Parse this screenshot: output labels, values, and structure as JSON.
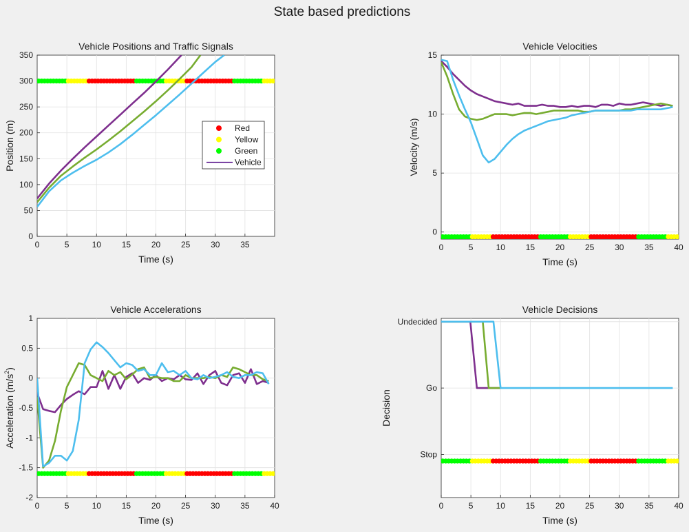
{
  "figure": {
    "title": "State based predictions"
  },
  "colors": {
    "red": "#ff0000",
    "yellow": "#ffff00",
    "green": "#00ff00",
    "purple": "#7e2f8e",
    "olive": "#77ac30",
    "sky": "#4dbeee",
    "legend_line": "#4b0082"
  },
  "signal_pattern": [
    {
      "state": "green",
      "from": 0,
      "to": 5
    },
    {
      "state": "yellow",
      "from": 5,
      "to": 8.5
    },
    {
      "state": "red",
      "from": 8.5,
      "to": 16.5
    },
    {
      "state": "green",
      "from": 16.5,
      "to": 21.5
    },
    {
      "state": "yellow",
      "from": 21.5,
      "to": 25
    },
    {
      "state": "red",
      "from": 25,
      "to": 33
    },
    {
      "state": "green",
      "from": 33,
      "to": 38
    },
    {
      "state": "yellow",
      "from": 38,
      "to": 40
    }
  ],
  "chart_data": [
    {
      "id": "positions",
      "type": "line",
      "title": "Vehicle Positions and Traffic Signals",
      "xlabel": "Time (s)",
      "ylabel": "Position (m)",
      "xlim": [
        0,
        40
      ],
      "ylim": [
        0,
        350
      ],
      "xticks": [
        0,
        5,
        10,
        15,
        20,
        25,
        30,
        35
      ],
      "yticks": [
        0,
        50,
        100,
        150,
        200,
        250,
        300,
        350
      ],
      "grid": true,
      "signal_y": 300,
      "legend": {
        "placement": "center-right",
        "entries": [
          {
            "label": "Red",
            "marker": "red"
          },
          {
            "label": "Yellow",
            "marker": "yellow"
          },
          {
            "label": "Green",
            "marker": "green"
          },
          {
            "label": "Vehicle",
            "line": "legend_line"
          }
        ]
      },
      "series": [
        {
          "color": "purple",
          "x": [
            0,
            2,
            4,
            6,
            8,
            10,
            12,
            14,
            16,
            18,
            20,
            22,
            24.3
          ],
          "y": [
            73,
            102,
            127,
            150,
            172,
            193,
            214,
            235,
            256,
            277,
            299,
            322,
            350
          ]
        },
        {
          "color": "olive",
          "x": [
            0,
            2,
            4,
            6,
            8,
            10,
            12,
            14,
            16,
            18,
            20,
            22,
            24,
            26,
            27.5
          ],
          "y": [
            66,
            94,
            117,
            135,
            152,
            168,
            185,
            203,
            222,
            241,
            261,
            282,
            304,
            327,
            350
          ]
        },
        {
          "color": "sky",
          "x": [
            0,
            2,
            4,
            6,
            8,
            10,
            12,
            14,
            16,
            18,
            20,
            22,
            24,
            26,
            28,
            30,
            31.5
          ],
          "y": [
            57,
            87,
            108,
            123,
            136,
            148,
            162,
            178,
            196,
            215,
            234,
            254,
            274,
            295,
            316,
            337,
            350
          ]
        }
      ]
    },
    {
      "id": "velocities",
      "type": "line",
      "title": "Vehicle Velocities",
      "xlabel": "Time (s)",
      "ylabel": "Velocity (m/s)",
      "xlim": [
        0,
        40
      ],
      "ylim": [
        -0.6,
        15
      ],
      "xticks": [
        0,
        5,
        10,
        15,
        20,
        25,
        30,
        35,
        40
      ],
      "yticks": [
        0,
        5,
        10,
        15
      ],
      "grid": true,
      "signal_y": -0.4,
      "series": [
        {
          "color": "purple",
          "x": [
            0,
            1,
            2,
            3,
            4,
            5,
            6,
            7,
            8,
            9,
            10,
            11,
            12,
            13,
            14,
            15,
            16,
            17,
            18,
            19,
            20,
            21,
            22,
            23,
            24,
            25,
            26,
            27,
            28,
            29,
            30,
            31,
            32,
            33,
            34,
            35,
            36,
            37,
            38,
            39
          ],
          "y": [
            14.5,
            14.0,
            13.4,
            12.9,
            12.4,
            12.0,
            11.7,
            11.5,
            11.3,
            11.1,
            11.0,
            10.9,
            10.8,
            10.9,
            10.7,
            10.7,
            10.7,
            10.8,
            10.7,
            10.7,
            10.6,
            10.6,
            10.7,
            10.6,
            10.7,
            10.7,
            10.6,
            10.8,
            10.8,
            10.7,
            10.9,
            10.8,
            10.8,
            10.9,
            11.0,
            10.9,
            10.8,
            10.7,
            10.8,
            10.7
          ]
        },
        {
          "color": "olive",
          "x": [
            0,
            1,
            2,
            3,
            4,
            5,
            6,
            7,
            8,
            9,
            10,
            11,
            12,
            13,
            14,
            15,
            16,
            17,
            18,
            19,
            20,
            21,
            22,
            23,
            24,
            25,
            26,
            27,
            28,
            29,
            30,
            31,
            32,
            33,
            34,
            35,
            36,
            37,
            38,
            39
          ],
          "y": [
            14.4,
            13.2,
            11.7,
            10.4,
            9.8,
            9.6,
            9.5,
            9.6,
            9.8,
            10.0,
            10.0,
            10.0,
            9.9,
            10.0,
            10.1,
            10.1,
            10.0,
            10.1,
            10.2,
            10.3,
            10.3,
            10.3,
            10.3,
            10.3,
            10.2,
            10.2,
            10.3,
            10.3,
            10.3,
            10.3,
            10.3,
            10.4,
            10.4,
            10.5,
            10.6,
            10.7,
            10.8,
            10.9,
            10.8,
            10.7
          ]
        },
        {
          "color": "sky",
          "x": [
            0,
            1,
            2,
            3,
            4,
            5,
            6,
            7,
            8,
            9,
            10,
            11,
            12,
            13,
            14,
            15,
            16,
            17,
            18,
            19,
            20,
            21,
            22,
            23,
            24,
            25,
            26,
            27,
            28,
            29,
            30,
            31,
            32,
            33,
            34,
            35,
            36,
            37,
            38,
            39
          ],
          "y": [
            14.6,
            14.5,
            12.9,
            11.6,
            10.4,
            9.3,
            7.9,
            6.5,
            5.9,
            6.2,
            6.8,
            7.4,
            7.9,
            8.3,
            8.6,
            8.8,
            9.0,
            9.2,
            9.4,
            9.5,
            9.6,
            9.7,
            9.9,
            10.0,
            10.1,
            10.2,
            10.3,
            10.3,
            10.3,
            10.3,
            10.3,
            10.3,
            10.3,
            10.4,
            10.4,
            10.4,
            10.4,
            10.4,
            10.5,
            10.6
          ]
        }
      ]
    },
    {
      "id": "accelerations",
      "type": "line",
      "title": "Vehicle Accelerations",
      "xlabel": "Time (s)",
      "ylabel": "Acceleration (m/s",
      "ylabel_sup": "2",
      "ylabel_end": ")",
      "xlim": [
        0,
        40
      ],
      "ylim": [
        -2,
        1
      ],
      "xticks": [
        0,
        5,
        10,
        15,
        20,
        25,
        30,
        35,
        40
      ],
      "yticks": [
        -2,
        -1.5,
        -1,
        -0.5,
        0,
        0.5,
        1
      ],
      "grid": true,
      "signal_y": -1.6,
      "series": [
        {
          "color": "purple",
          "x": [
            0,
            1,
            2,
            3,
            4,
            5,
            6,
            7,
            8,
            9,
            10,
            11,
            12,
            13,
            14,
            15,
            16,
            17,
            18,
            19,
            20,
            21,
            22,
            23,
            24,
            25,
            26,
            27,
            28,
            29,
            30,
            31,
            32,
            33,
            34,
            35,
            36,
            37,
            38,
            39
          ],
          "y": [
            -0.25,
            -0.52,
            -0.55,
            -0.57,
            -0.45,
            -0.35,
            -0.28,
            -0.22,
            -0.27,
            -0.15,
            -0.15,
            0.12,
            -0.18,
            0.05,
            -0.18,
            0.02,
            0.08,
            -0.08,
            0.0,
            -0.03,
            0.05,
            -0.05,
            0.0,
            -0.02,
            0.05,
            -0.02,
            -0.03,
            0.08,
            -0.1,
            0.05,
            0.12,
            -0.08,
            -0.12,
            0.05,
            0.08,
            -0.08,
            0.15,
            -0.1,
            -0.05,
            -0.08
          ]
        },
        {
          "color": "olive",
          "x": [
            0,
            1,
            2,
            3,
            4,
            5,
            6,
            7,
            8,
            9,
            10,
            11,
            12,
            13,
            14,
            15,
            16,
            17,
            18,
            19,
            20,
            21,
            22,
            23,
            24,
            25,
            26,
            27,
            28,
            29,
            30,
            31,
            32,
            33,
            34,
            35,
            36,
            37,
            38,
            39
          ],
          "y": [
            -0.32,
            -1.5,
            -1.38,
            -1.05,
            -0.55,
            -0.15,
            0.05,
            0.25,
            0.22,
            0.05,
            0.0,
            -0.05,
            0.12,
            0.05,
            0.1,
            -0.02,
            0.06,
            0.15,
            0.18,
            0.0,
            0.02,
            0.0,
            0.0,
            -0.05,
            -0.05,
            0.05,
            0.0,
            0.0,
            0.0,
            0.02,
            0.0,
            0.05,
            0.02,
            0.18,
            0.15,
            0.1,
            0.05,
            0.05,
            -0.02,
            -0.05
          ]
        },
        {
          "color": "sky",
          "x": [
            0,
            1,
            2,
            3,
            4,
            5,
            6,
            7,
            8,
            9,
            10,
            11,
            12,
            13,
            14,
            15,
            16,
            17,
            18,
            19,
            20,
            21,
            22,
            23,
            24,
            25,
            26,
            27,
            28,
            29,
            30,
            31,
            32,
            33,
            34,
            35,
            36,
            37,
            38,
            39
          ],
          "y": [
            0.0,
            -1.48,
            -1.42,
            -1.3,
            -1.3,
            -1.38,
            -1.22,
            -0.7,
            0.25,
            0.48,
            0.6,
            0.52,
            0.42,
            0.3,
            0.18,
            0.25,
            0.22,
            0.12,
            0.15,
            0.05,
            0.05,
            0.25,
            0.1,
            0.12,
            0.05,
            0.12,
            0.0,
            -0.02,
            0.05,
            0.0,
            0.02,
            0.05,
            0.1,
            0.02,
            0.0,
            0.05,
            0.05,
            0.1,
            0.08,
            -0.1
          ]
        }
      ]
    },
    {
      "id": "decisions",
      "type": "line",
      "title": "Vehicle Decisions",
      "xlabel": "Time (s)",
      "ylabel": "Decision",
      "xlim": [
        0,
        40
      ],
      "ylim": [
        -0.65,
        2.05
      ],
      "xticks": [
        0,
        5,
        10,
        15,
        20,
        25,
        30,
        35,
        40
      ],
      "yticks": [
        0,
        1,
        2
      ],
      "yticklabels": [
        "Stop",
        "Go",
        "Undecided"
      ],
      "grid": true,
      "signal_y": -0.1,
      "series": [
        {
          "color": "purple",
          "x": [
            0,
            4.9,
            6,
            10
          ],
          "y": [
            2,
            2,
            1,
            1
          ]
        },
        {
          "color": "olive",
          "x": [
            0,
            7,
            8,
            10
          ],
          "y": [
            2,
            2,
            1,
            1
          ]
        },
        {
          "color": "sky",
          "x": [
            0,
            8.8,
            10,
            39
          ],
          "y": [
            2,
            2,
            1,
            1
          ]
        }
      ]
    }
  ]
}
